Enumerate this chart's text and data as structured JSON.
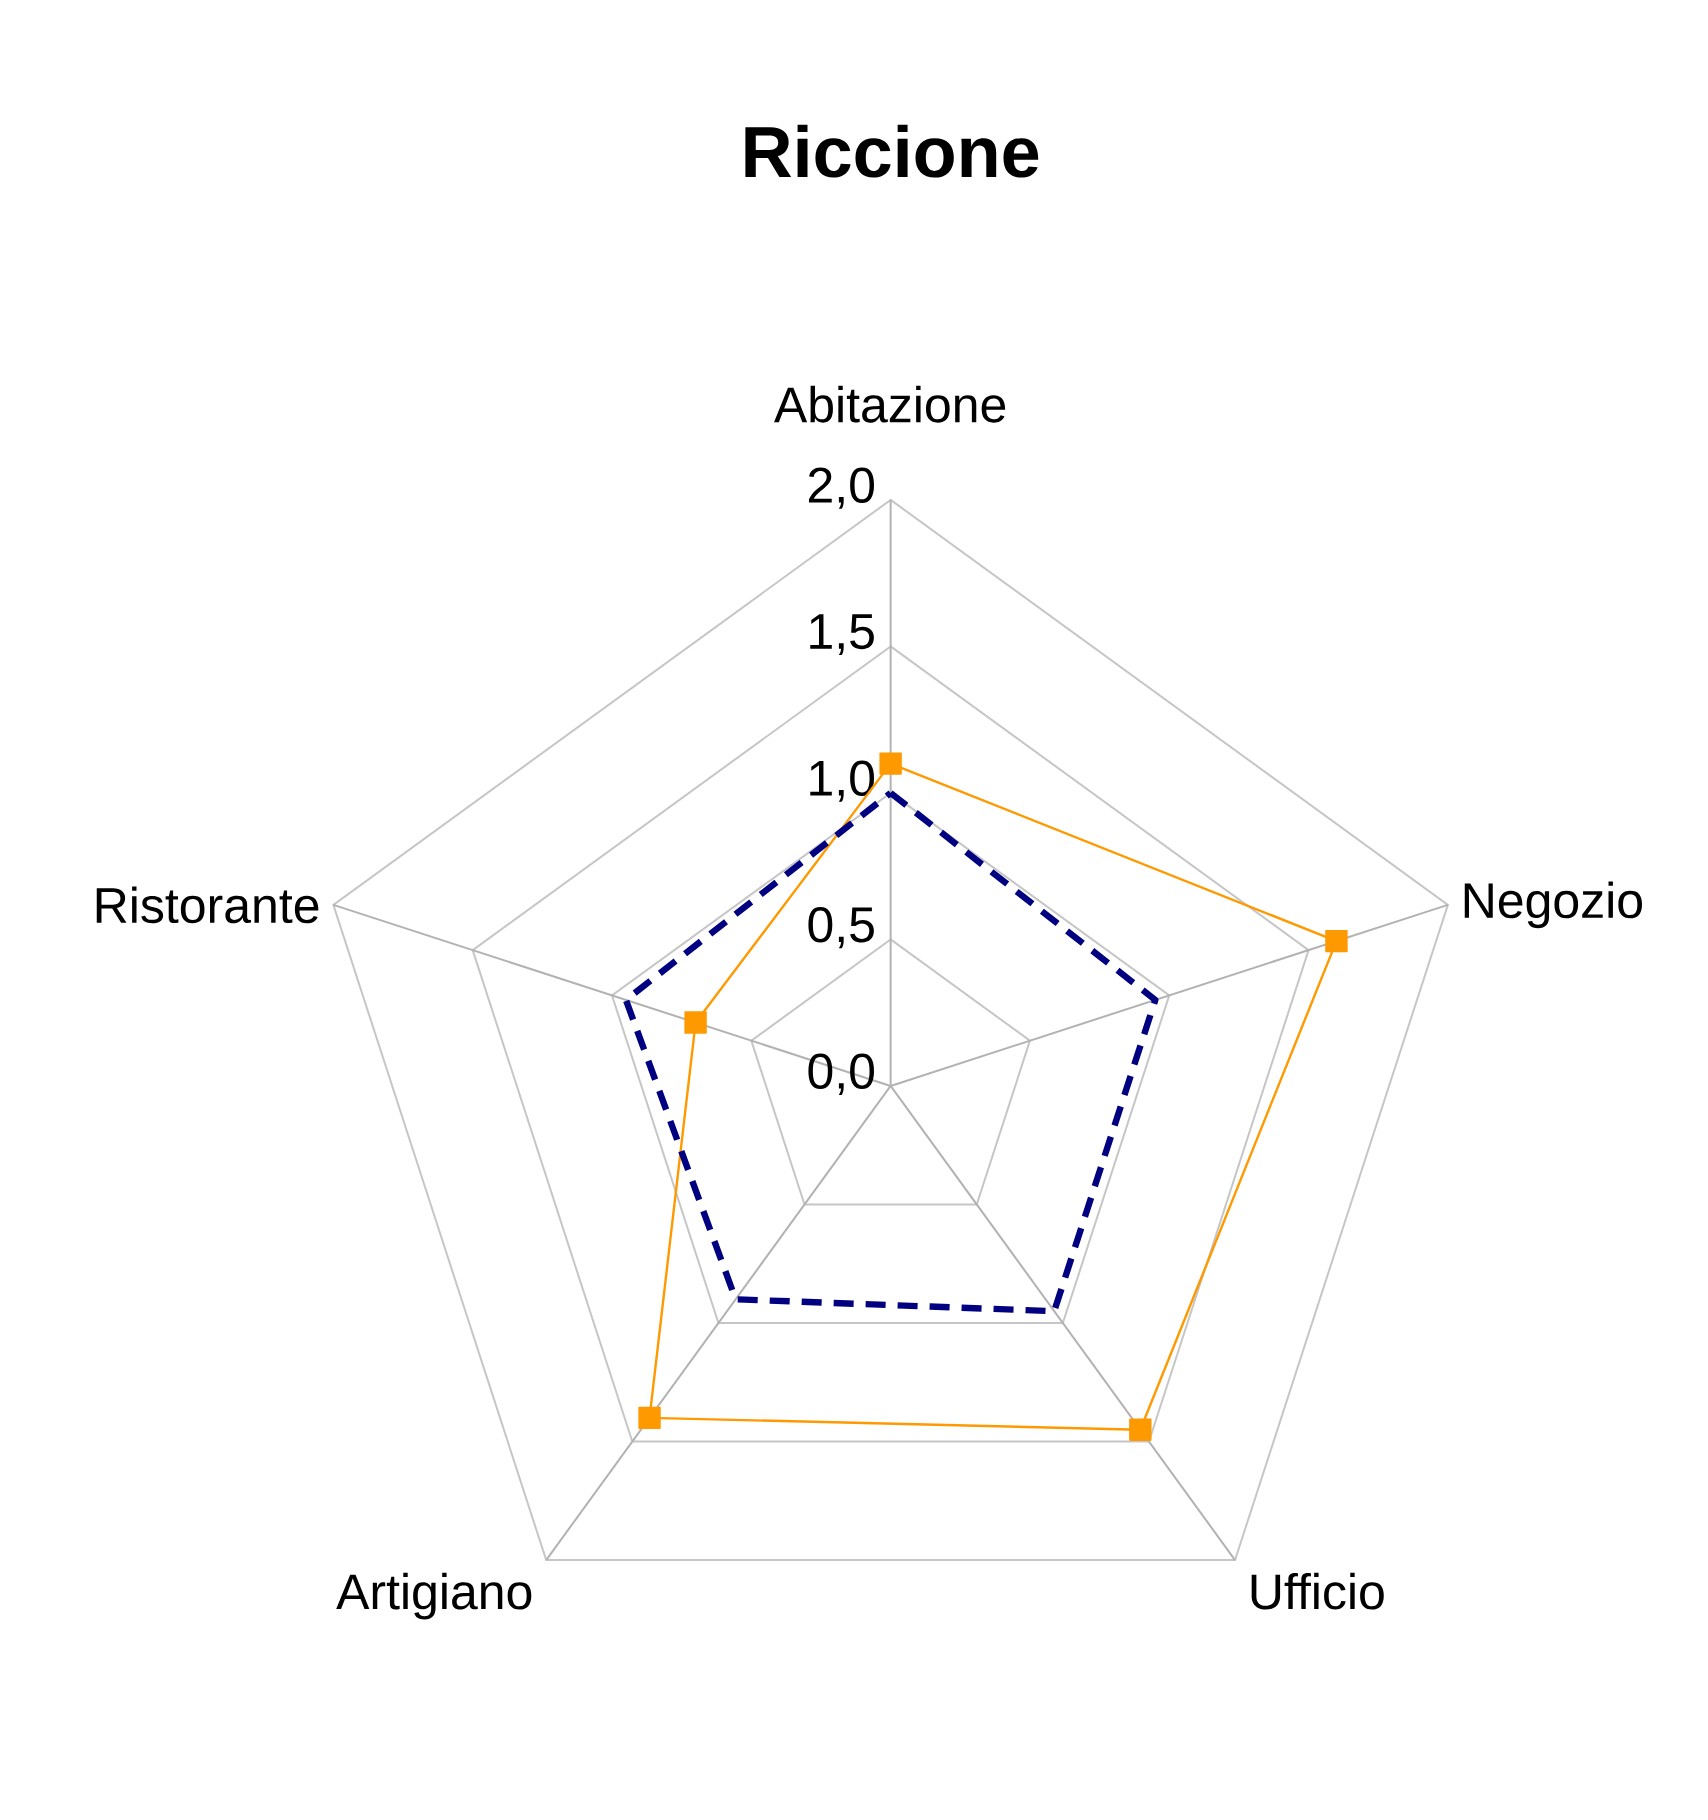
{
  "chart_data": {
    "type": "radar",
    "title": "Riccione",
    "categories": [
      "Abitazione",
      "Negozio",
      "Ufficio",
      "Artigiano",
      "Ristorante"
    ],
    "series": [
      {
        "color": "#ff9900",
        "values": [
          1.1,
          1.6,
          1.45,
          1.4,
          0.7
        ],
        "marker": "square",
        "line_style": "solid"
      },
      {
        "color": "#000080",
        "values": [
          1.0,
          0.95,
          0.95,
          0.9,
          0.95
        ],
        "marker": "none",
        "line_style": "dashed"
      }
    ],
    "ylim": [
      0,
      2
    ],
    "yticks": [
      {
        "value": 0,
        "label": "0,0"
      },
      {
        "value": 0.5,
        "label": "0,5"
      },
      {
        "value": 1,
        "label": "1,0"
      },
      {
        "value": 1.5,
        "label": "1,5"
      },
      {
        "value": 2,
        "label": "2,0"
      }
    ],
    "grid": true
  }
}
